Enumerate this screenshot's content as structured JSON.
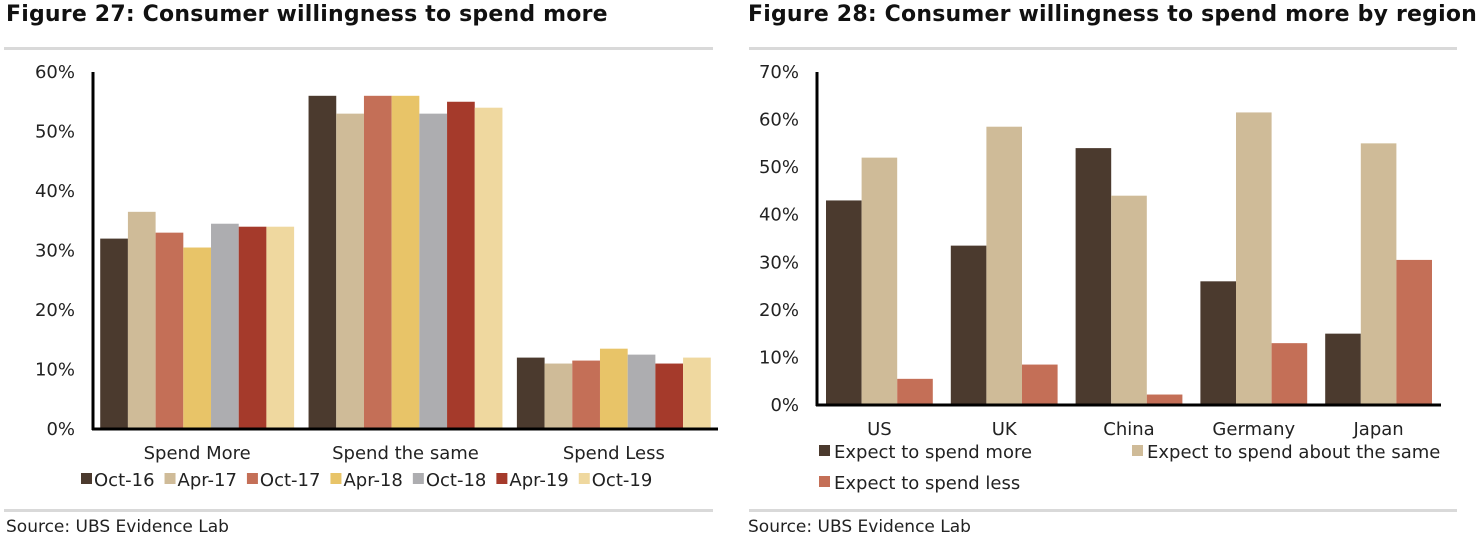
{
  "figures": [
    {
      "title": "Figure 27: Consumer willingness to spend more",
      "source": "Source:  UBS Evidence Lab"
    },
    {
      "title": "Figure 28: Consumer willingness to spend more by region",
      "source": "Source:  UBS Evidence Lab"
    }
  ],
  "chart_data": [
    {
      "type": "bar",
      "categories": [
        "Spend More",
        "Spend the same",
        "Spend Less"
      ],
      "series": [
        {
          "name": "Oct-16",
          "color": "#4b3a2e",
          "values": [
            32,
            56,
            12
          ]
        },
        {
          "name": "Apr-17",
          "color": "#cfbb98",
          "values": [
            36.5,
            53,
            11
          ]
        },
        {
          "name": "Oct-17",
          "color": "#c46f57",
          "values": [
            33,
            56,
            11.5
          ]
        },
        {
          "name": "Apr-18",
          "color": "#e8c468",
          "values": [
            30.5,
            56,
            13.5
          ]
        },
        {
          "name": "Oct-18",
          "color": "#adadb0",
          "values": [
            34.5,
            53,
            12.5
          ]
        },
        {
          "name": "Apr-19",
          "color": "#a53a2b",
          "values": [
            34,
            55,
            11
          ]
        },
        {
          "name": "Oct-19",
          "color": "#efd89f",
          "values": [
            34,
            54,
            12
          ]
        }
      ],
      "yticks": [
        "0%",
        "10%",
        "20%",
        "30%",
        "40%",
        "50%",
        "60%"
      ],
      "ylim": [
        0,
        60
      ],
      "legend_position": "bottom",
      "grid": false
    },
    {
      "type": "bar",
      "categories": [
        "US",
        "UK",
        "China",
        "Germany",
        "Japan"
      ],
      "series": [
        {
          "name": "Expect to spend more",
          "color": "#4b3a2e",
          "values": [
            43,
            33.5,
            54,
            26,
            15
          ]
        },
        {
          "name": "Expect to spend about the same",
          "color": "#cfbb98",
          "values": [
            52,
            58.5,
            44,
            61.5,
            55
          ]
        },
        {
          "name": "Expect to spend less",
          "color": "#c46f57",
          "values": [
            5.5,
            8.5,
            2.2,
            13,
            30.5
          ]
        }
      ],
      "yticks": [
        "0%",
        "10%",
        "20%",
        "30%",
        "40%",
        "50%",
        "60%",
        "70%"
      ],
      "ylim": [
        0,
        70
      ],
      "legend_position": "bottom",
      "grid": false
    }
  ]
}
